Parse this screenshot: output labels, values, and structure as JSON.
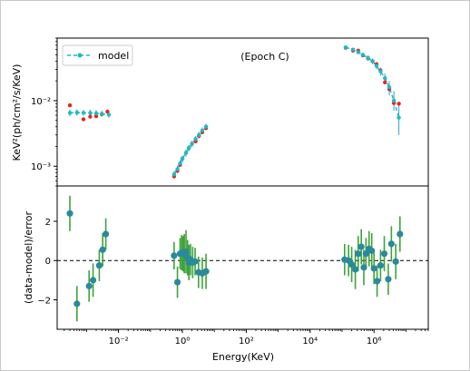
{
  "chart_data": [
    {
      "type": "line",
      "panel": "top",
      "title": "(Epoch C)",
      "xlabel": "",
      "ylabel": "KeV²(ph/cm²/s/KeV)",
      "xscale": "log",
      "yscale": "log",
      "xlim": [
        0.00012,
        50000000
      ],
      "ylim": [
        0.0005,
        0.09
      ],
      "y_tick_labels": [
        "10⁻³",
        "10⁻²"
      ],
      "legend": {
        "placement": "top-left",
        "entries": [
          "model"
        ]
      },
      "colors": {
        "data": "#e8241c",
        "model": "#1bbcc4",
        "model_err": "#3c9bd6"
      },
      "series": [
        {
          "name": "model",
          "style": "dashed line with markers",
          "x": [
            0.0003,
            0.0005,
            0.0008,
            0.0013,
            0.002,
            0.003,
            0.005,
            0.55,
            0.7,
            0.85,
            1.0,
            1.3,
            1.6,
            2.0,
            2.6,
            3.3,
            4.2,
            5.5,
            130000,
            220000,
            320000,
            450000,
            650000,
            900000,
            1200000,
            1600000,
            2200000,
            3000000,
            4200000,
            6000000
          ],
          "y": [
            0.0065,
            0.0066,
            0.0065,
            0.0065,
            0.0064,
            0.0063,
            0.0061,
            0.00075,
            0.0009,
            0.0011,
            0.0013,
            0.0016,
            0.0019,
            0.0022,
            0.0026,
            0.003,
            0.0035,
            0.004,
            0.065,
            0.06,
            0.055,
            0.05,
            0.045,
            0.04,
            0.034,
            0.028,
            0.022,
            0.016,
            0.01,
            0.0055
          ],
          "y_err_low": [
            0.0007,
            0.0007,
            0.0006,
            0.0007,
            0.0007,
            0.0006,
            0.0006,
            0.0001,
            0.00012,
            0.00013,
            0.00015,
            0.0002,
            0.00022,
            0.00025,
            0.0003,
            0.00035,
            0.0004,
            0.00045,
            0.004,
            0.004,
            0.004,
            0.004,
            0.004,
            0.004,
            0.004,
            0.004,
            0.004,
            0.004,
            0.003,
            0.0025
          ],
          "y_err_high": [
            0.0008,
            0.0008,
            0.0007,
            0.0008,
            0.0008,
            0.0007,
            0.0007,
            0.0001,
            0.00012,
            0.00013,
            0.00015,
            0.0002,
            0.00022,
            0.00025,
            0.0003,
            0.00035,
            0.0004,
            0.00045,
            0.004,
            0.004,
            0.004,
            0.004,
            0.004,
            0.004,
            0.004,
            0.004,
            0.004,
            0.004,
            0.004,
            0.003
          ]
        },
        {
          "name": "",
          "style": "points",
          "x": [
            0.0003,
            0.0008,
            0.0013,
            0.002,
            0.003,
            0.0045,
            0.55,
            0.7,
            0.85,
            1.0,
            1.3,
            1.6,
            2.0,
            2.6,
            3.3,
            4.2,
            5.5,
            130000,
            220000,
            320000,
            450000,
            650000,
            900000,
            1200000,
            1600000,
            2200000,
            3000000,
            4200000,
            6000000
          ],
          "y": [
            0.0085,
            0.0052,
            0.0057,
            0.0058,
            0.0062,
            0.0068,
            0.0007,
            0.00085,
            0.00105,
            0.0013,
            0.0016,
            0.0019,
            0.0022,
            0.0024,
            0.0029,
            0.0033,
            0.0038,
            0.064,
            0.058,
            0.058,
            0.049,
            0.044,
            0.04,
            0.036,
            0.029,
            0.019,
            0.015,
            0.0092,
            0.009
          ]
        }
      ]
    },
    {
      "type": "scatter",
      "panel": "bottom",
      "xlabel": "Energy(KeV)",
      "ylabel": "(data-model)/error",
      "xscale": "log",
      "xlim": [
        0.00012,
        50000000
      ],
      "ylim": [
        -3.5,
        3.8
      ],
      "x_tick_labels": [
        "10⁻²",
        "10⁰",
        "10²",
        "10⁴",
        "10⁶"
      ],
      "y_tick_labels": [
        "−2",
        "0",
        "2"
      ],
      "reference_line": {
        "y": 0,
        "style": "dashed"
      },
      "colors": {
        "marker": "#2a8a9c",
        "errorbar": "#3fa33a"
      },
      "series": [
        {
          "name": "",
          "x": [
            0.0003,
            0.0005,
            0.0012,
            0.0016,
            0.0025,
            0.0032,
            0.004,
            0.55,
            0.7,
            0.85,
            0.95,
            1.05,
            1.15,
            1.3,
            1.45,
            1.6,
            1.8,
            2.1,
            2.5,
            3.2,
            4.2,
            5.5,
            120000,
            160000,
            200000,
            260000,
            320000,
            400000,
            480000,
            560000,
            700000,
            850000,
            1000000,
            1250000,
            1600000,
            2100000,
            2800000,
            3500000,
            4800000,
            6500000
          ],
          "y": [
            2.4,
            -2.2,
            -1.3,
            -1.0,
            -0.25,
            0.55,
            1.35,
            0.25,
            -1.1,
            0.35,
            0.4,
            0.35,
            0.35,
            0.45,
            0.15,
            -0.1,
            0.05,
            -0.1,
            -0.05,
            -0.6,
            -0.65,
            -0.55,
            0.05,
            0.0,
            -0.2,
            -0.45,
            0.35,
            0.7,
            -0.35,
            0.35,
            0.6,
            0.5,
            -0.4,
            -1.05,
            -0.25,
            0.35,
            -0.95,
            0.85,
            -0.05,
            1.35
          ],
          "err": [
            0.9,
            0.9,
            0.8,
            0.85,
            0.8,
            0.85,
            0.8,
            0.7,
            0.8,
            0.8,
            0.9,
            0.9,
            1.0,
            1.1,
            0.9,
            0.9,
            0.8,
            0.8,
            0.7,
            0.8,
            0.8,
            0.9,
            0.8,
            0.8,
            0.9,
            1.0,
            0.9,
            0.9,
            0.9,
            0.8,
            0.9,
            0.9,
            0.8,
            0.8,
            0.8,
            0.9,
            0.8,
            0.9,
            0.9,
            0.9
          ]
        }
      ]
    }
  ]
}
